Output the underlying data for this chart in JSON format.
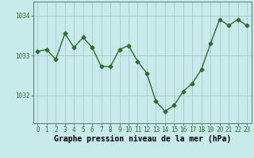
{
  "x": [
    0,
    1,
    2,
    3,
    4,
    5,
    6,
    7,
    8,
    9,
    10,
    11,
    12,
    13,
    14,
    15,
    16,
    17,
    18,
    19,
    20,
    21,
    22,
    23
  ],
  "y": [
    1033.1,
    1033.15,
    1032.9,
    1033.55,
    1033.2,
    1033.45,
    1033.2,
    1032.72,
    1032.72,
    1033.15,
    1033.25,
    1032.85,
    1032.55,
    1031.85,
    1031.6,
    1031.75,
    1032.1,
    1032.3,
    1032.65,
    1033.3,
    1033.9,
    1033.75,
    1033.9,
    1033.75
  ],
  "line_color": "#2d6e2d",
  "marker": "D",
  "markersize": 2.5,
  "linewidth": 1.0,
  "bg_color": "#c8eaea",
  "plot_bg_color": "#c8eaea",
  "grid_color": "#aac8c8",
  "xlabel": "Graphe pression niveau de la mer (hPa)",
  "yticks": [
    1032,
    1033,
    1034
  ],
  "ylim": [
    1031.3,
    1034.35
  ],
  "xlim": [
    -0.5,
    23.5
  ],
  "xticks": [
    0,
    1,
    2,
    3,
    4,
    5,
    6,
    7,
    8,
    9,
    10,
    11,
    12,
    13,
    14,
    15,
    16,
    17,
    18,
    19,
    20,
    21,
    22,
    23
  ],
  "tick_fontsize": 5.5,
  "label_fontsize": 7.0
}
